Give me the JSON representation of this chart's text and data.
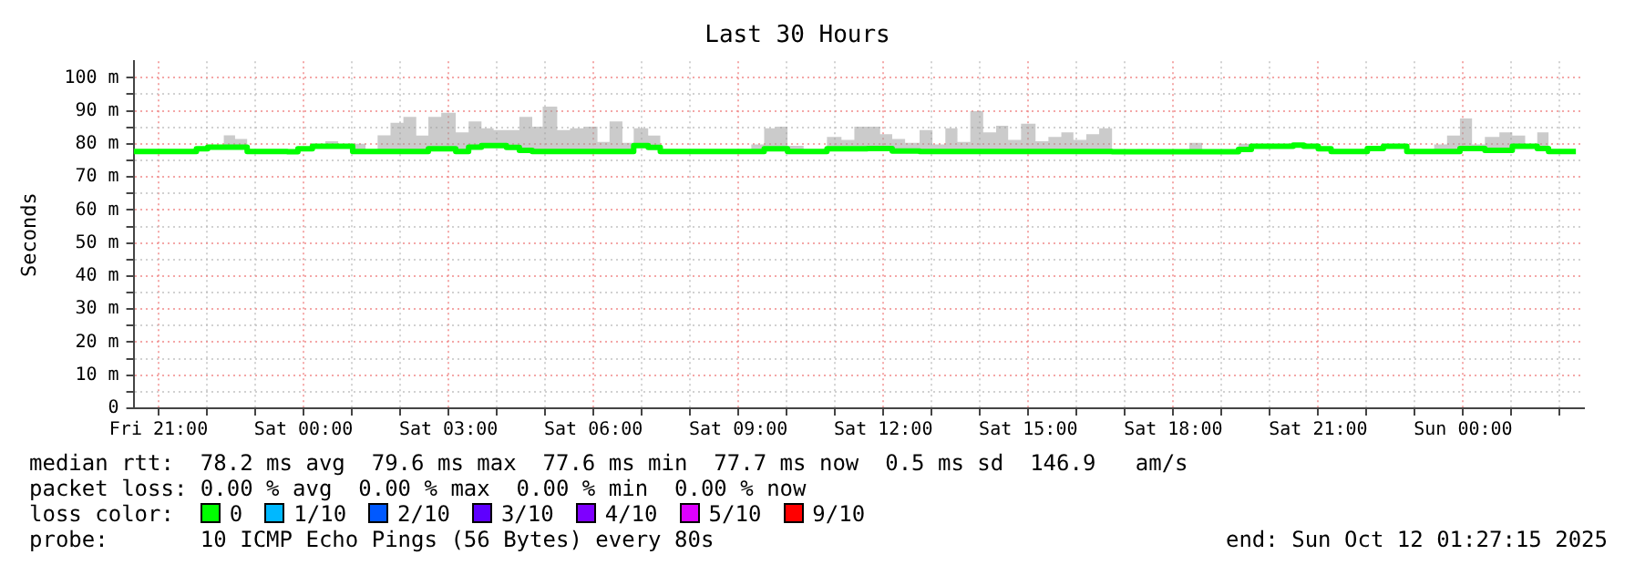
{
  "chart_data": {
    "type": "step",
    "title": "Last 30 Hours",
    "ylabel": "Seconds",
    "legend_title": "loss color:",
    "legend": "bottom",
    "grid": true,
    "xlim": [
      "2025-10-10T20:29",
      "2025-10-12T02:30"
    ],
    "xticks": [
      {
        "value": "2025-10-10T21:00",
        "label": "Fri 21:00"
      },
      {
        "value": "2025-10-10T22:00",
        "label": null
      },
      {
        "value": "2025-10-10T23:00",
        "label": null
      },
      {
        "value": "2025-10-11T00:00",
        "label": "Sat 00:00"
      },
      {
        "value": "2025-10-11T01:00",
        "label": null
      },
      {
        "value": "2025-10-11T02:00",
        "label": null
      },
      {
        "value": "2025-10-11T03:00",
        "label": "Sat 03:00"
      },
      {
        "value": "2025-10-11T04:00",
        "label": null
      },
      {
        "value": "2025-10-11T05:00",
        "label": null
      },
      {
        "value": "2025-10-11T06:00",
        "label": "Sat 06:00"
      },
      {
        "value": "2025-10-11T07:00",
        "label": null
      },
      {
        "value": "2025-10-11T08:00",
        "label": null
      },
      {
        "value": "2025-10-11T09:00",
        "label": "Sat 09:00"
      },
      {
        "value": "2025-10-11T10:00",
        "label": null
      },
      {
        "value": "2025-10-11T11:00",
        "label": null
      },
      {
        "value": "2025-10-11T12:00",
        "label": "Sat 12:00"
      },
      {
        "value": "2025-10-11T13:00",
        "label": null
      },
      {
        "value": "2025-10-11T14:00",
        "label": null
      },
      {
        "value": "2025-10-11T15:00",
        "label": "Sat 15:00"
      },
      {
        "value": "2025-10-11T16:00",
        "label": null
      },
      {
        "value": "2025-10-11T17:00",
        "label": null
      },
      {
        "value": "2025-10-11T18:00",
        "label": "Sat 18:00"
      },
      {
        "value": "2025-10-11T19:00",
        "label": null
      },
      {
        "value": "2025-10-11T20:00",
        "label": null
      },
      {
        "value": "2025-10-11T21:00",
        "label": "Sat 21:00"
      },
      {
        "value": "2025-10-11T22:00",
        "label": null
      },
      {
        "value": "2025-10-11T23:00",
        "label": null
      },
      {
        "value": "2025-10-12T00:00",
        "label": "Sun 00:00"
      },
      {
        "value": "2025-10-12T01:00",
        "label": null
      },
      {
        "value": "2025-10-12T02:00",
        "label": null
      }
    ],
    "ylim": [
      0,
      105
    ],
    "yticks": [
      0,
      {
        "value": 5,
        "label": null
      },
      {
        "value": 10,
        "label": "10 m"
      },
      {
        "value": 15,
        "label": null
      },
      {
        "value": 20,
        "label": "20 m"
      },
      {
        "value": 25,
        "label": null
      },
      {
        "value": 30,
        "label": "30 m"
      },
      {
        "value": 35,
        "label": null
      },
      {
        "value": 40,
        "label": "40 m"
      },
      {
        "value": 45,
        "label": null
      },
      {
        "value": 50,
        "label": "50 m"
      },
      {
        "value": 55,
        "label": null
      },
      {
        "value": 60,
        "label": "60 m"
      },
      {
        "value": 65,
        "label": null
      },
      {
        "value": 70,
        "label": "70 m"
      },
      {
        "value": 75,
        "label": null
      },
      {
        "value": 80,
        "label": "80 m"
      },
      {
        "value": 85,
        "label": null
      },
      {
        "value": 90,
        "label": "90 m"
      },
      {
        "value": 95,
        "label": null
      },
      {
        "value": 100,
        "label": "100 m"
      }
    ],
    "annotations": [
      "median rtt:  78.2 ms avg  79.6 ms max  77.6 ms min  77.7 ms now  0.5 ms sd  146.9   am/s",
      "packet loss: 0.00 % avg  0.00 % max  0.00 % min  0.00 % now",
      "probe:       10 ICMP Echo Pings (56 Bytes) every 80s",
      "end: Sun Oct 12 01:27:15 2025"
    ],
    "series": [
      {
        "name": "0",
        "color": "#00ff00",
        "x": [
          "2025-10-10T20:29",
          "2025-10-10T21:47",
          "2025-10-10T22:01",
          "2025-10-10T22:21",
          "2025-10-10T22:35",
          "2025-10-10T22:50",
          "2025-10-10T23:40",
          "2025-10-10T23:53",
          "2025-10-11T00:11",
          "2025-10-11T00:27",
          "2025-10-11T00:43",
          "2025-10-11T01:01",
          "2025-10-11T01:17",
          "2025-10-11T01:32",
          "2025-10-11T01:48",
          "2025-10-11T02:04",
          "2025-10-11T02:20",
          "2025-10-11T02:35",
          "2025-10-11T02:51",
          "2025-10-11T03:09",
          "2025-10-11T03:25",
          "2025-10-11T03:41",
          "2025-10-11T03:56",
          "2025-10-11T04:12",
          "2025-10-11T04:28",
          "2025-10-11T04:44",
          "2025-10-11T04:57",
          "2025-10-11T05:15",
          "2025-10-11T05:31",
          "2025-10-11T05:49",
          "2025-10-11T06:05",
          "2025-10-11T06:20",
          "2025-10-11T06:36",
          "2025-10-11T06:50",
          "2025-10-11T07:08",
          "2025-10-11T07:23",
          "2025-10-11T09:16",
          "2025-10-11T09:32",
          "2025-10-11T09:47",
          "2025-10-11T10:01",
          "2025-10-11T10:21",
          "2025-10-11T10:50",
          "2025-10-11T11:08",
          "2025-10-11T11:24",
          "2025-10-11T11:40",
          "2025-10-11T11:56",
          "2025-10-11T12:11",
          "2025-10-11T12:27",
          "2025-10-11T12:45",
          "2025-10-11T13:01",
          "2025-10-11T13:17",
          "2025-10-11T13:32",
          "2025-10-11T13:48",
          "2025-10-11T14:04",
          "2025-10-11T14:20",
          "2025-10-11T14:35",
          "2025-10-11T14:51",
          "2025-10-11T15:09",
          "2025-10-11T15:25",
          "2025-10-11T15:41",
          "2025-10-11T15:56",
          "2025-10-11T16:12",
          "2025-10-11T16:28",
          "2025-10-11T16:44",
          "2025-10-11T17:15",
          "2025-10-11T17:31",
          "2025-10-11T18:20",
          "2025-10-11T18:36",
          "2025-10-11T19:21",
          "2025-10-11T19:37",
          "2025-10-11T20:29",
          "2025-10-11T20:42",
          "2025-10-11T21:00",
          "2025-10-11T21:16",
          "2025-10-11T22:01",
          "2025-10-11T22:21",
          "2025-10-11T22:50",
          "2025-10-11T23:24",
          "2025-10-11T23:40",
          "2025-10-11T23:56",
          "2025-10-12T00:11",
          "2025-10-12T00:27",
          "2025-10-12T00:45",
          "2025-10-12T01:01",
          "2025-10-12T01:17",
          "2025-10-12T01:32",
          "2025-10-12T01:46",
          "2025-10-12T02:20"
        ],
        "values": [
          77.7,
          78.5,
          79,
          79,
          79,
          77.7,
          77.6,
          78.5,
          79.3,
          79.3,
          79.3,
          77.7,
          77.7,
          77.7,
          77.7,
          77.7,
          77.7,
          78.5,
          78.5,
          77.7,
          79,
          79.5,
          79.5,
          78.9,
          78,
          77.7,
          77.7,
          77.7,
          77.7,
          77.7,
          77.7,
          77.7,
          77.7,
          79.5,
          78.9,
          77.7,
          77.7,
          78.5,
          78.5,
          77.7,
          77.7,
          78.5,
          78.5,
          78.5,
          78.6,
          78.6,
          77.8,
          77.8,
          77.7,
          77.7,
          77.7,
          77.7,
          77.7,
          77.7,
          77.7,
          77.7,
          77.7,
          77.7,
          77.7,
          77.7,
          77.7,
          77.7,
          77.7,
          77.6,
          77.6,
          77.6,
          77.6,
          77.6,
          78.3,
          79.3,
          79.6,
          79.3,
          78.5,
          77.7,
          78.6,
          79.3,
          77.7,
          77.7,
          77.7,
          78.6,
          78.6,
          78,
          78,
          79.3,
          79.3,
          78.6,
          77.7,
          77.7
        ],
        "lower": [
          77.7,
          78.5,
          79,
          79,
          79,
          77.7,
          77.6,
          78.5,
          79.3,
          79.3,
          79.3,
          77.7,
          77.7,
          77.7,
          77.7,
          77.7,
          77.7,
          78.5,
          78.5,
          77.7,
          79,
          79.5,
          79.5,
          78.9,
          78,
          77.7,
          77.7,
          77.7,
          77.7,
          77.7,
          77.7,
          77.7,
          77.7,
          79.5,
          78.9,
          77.7,
          77.7,
          78.5,
          78.5,
          77.7,
          77.7,
          78.5,
          78.5,
          78.5,
          78.6,
          78.6,
          77.8,
          77.8,
          77.7,
          77.7,
          77.7,
          77.7,
          77.7,
          77.7,
          77.7,
          77.7,
          77.7,
          77.7,
          77.7,
          77.7,
          77.7,
          77.7,
          77.7,
          77.6,
          77.6,
          77.6,
          77.6,
          77.6,
          78.3,
          79.3,
          79.6,
          79.3,
          78.5,
          77.7,
          78.6,
          79.3,
          77.7,
          77.7,
          77.7,
          78.6,
          78.6,
          78,
          78,
          79.3,
          79.3,
          78.6,
          77.7,
          77.7
        ],
        "upper": [
          77.7,
          78.5,
          79,
          82.6,
          81.5,
          77.7,
          77.6,
          78.5,
          79.3,
          80.8,
          79.3,
          80,
          77.7,
          82.6,
          86.4,
          88.2,
          82.5,
          88.2,
          89.4,
          83.5,
          86.8,
          84.7,
          84.2,
          84.2,
          88.2,
          85.2,
          91.3,
          84.2,
          84.7,
          85.2,
          80.6,
          86.8,
          80.3,
          84.7,
          82.5,
          77.7,
          79.8,
          84.7,
          85.2,
          79.4,
          77.7,
          82.1,
          81.2,
          85.2,
          85.2,
          82.9,
          81.5,
          80.3,
          84.2,
          79.8,
          84.7,
          80.6,
          89.9,
          83.5,
          85.5,
          81.2,
          86.1,
          80.8,
          82.1,
          83.5,
          81.2,
          82.9,
          84.7,
          77.6,
          78.4,
          77.6,
          80.3,
          77.6,
          80,
          79.3,
          79.6,
          79.3,
          78.5,
          77.7,
          78.6,
          79.3,
          77.7,
          79.8,
          82.5,
          87.7,
          79.8,
          82.1,
          83.5,
          82.5,
          79.4,
          83.5,
          77.7,
          77.7
        ]
      },
      {
        "name": "1/10",
        "color": "#00b8ff"
      },
      {
        "name": "2/10",
        "color": "#0059ff"
      },
      {
        "name": "3/10",
        "color": "#5e00ff"
      },
      {
        "name": "4/10",
        "color": "#7e00ff"
      },
      {
        "name": "5/10",
        "color": "#dd00ff"
      },
      {
        "name": "9/10",
        "color": "#ff0000"
      }
    ]
  }
}
